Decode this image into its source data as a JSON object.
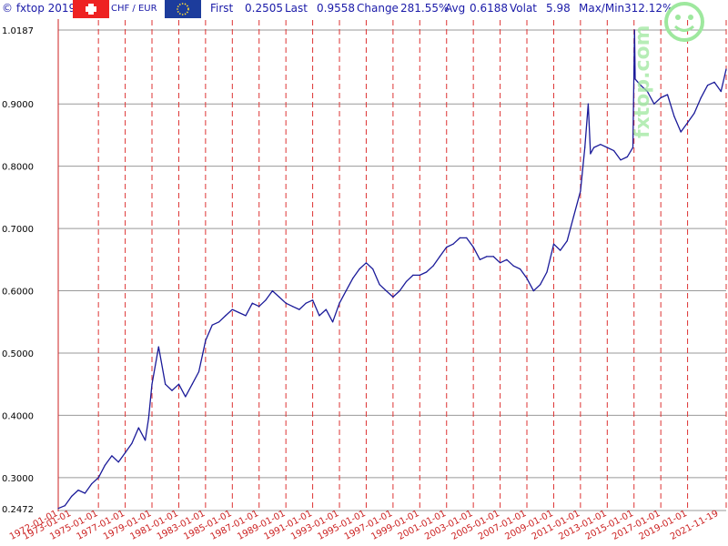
{
  "header": {
    "copyright": "© fxtop 2019",
    "pair": "CHF / EUR",
    "first_label": "First",
    "first_value": "0.2505",
    "last_label": "Last",
    "last_value": "0.9558",
    "change_label": "Change",
    "change_value": "281.55%",
    "avg_label": "Avg",
    "avg_value": "0.6188",
    "volat_label": "Volat",
    "volat_value": "5.98",
    "maxmin_label": "Max/Min",
    "maxmin_value": "312.12%"
  },
  "colors": {
    "line": "#1a1a99",
    "grid_v": "#dd3333",
    "grid_h": "#999999",
    "header_text": "#1a1aa8",
    "tick_text": "#cc2222",
    "swiss_flag": "#ee2222",
    "eu_flag": "#1c3c9c",
    "watermark": "#9ee89e"
  },
  "icons": [
    "swiss-flag-icon",
    "eu-flag-icon",
    "smiley-watermark-icon"
  ],
  "watermark": {
    "text": "fxtop.com"
  },
  "chart_data": {
    "type": "line",
    "title": "",
    "xlabel": "",
    "ylabel": "",
    "ylim": [
      0.2472,
      1.0187
    ],
    "xlim": [
      "1972-01-01",
      "2021-11-19"
    ],
    "grid": true,
    "ytick_labels": [
      "1.0187",
      "0.9000",
      "0.8000",
      "0.7000",
      "0.6000",
      "0.5000",
      "0.4000",
      "0.3000",
      "0.2472"
    ],
    "ytick_values": [
      1.0187,
      0.9,
      0.8,
      0.7,
      0.6,
      0.5,
      0.4,
      0.3,
      0.2472
    ],
    "xtick_labels": [
      "1972-01-01",
      "1973-01-01",
      "1975-01-01",
      "1977-01-01",
      "1979-01-01",
      "1981-01-01",
      "1983-01-01",
      "1985-01-01",
      "1987-01-01",
      "1989-01-01",
      "1991-01-01",
      "1993-01-01",
      "1995-01-01",
      "1997-01-01",
      "1999-01-01",
      "2001-01-01",
      "2003-01-01",
      "2005-01-01",
      "2007-01-01",
      "2009-01-01",
      "2011-01-01",
      "2013-01-01",
      "2015-01-01",
      "2017-01-01",
      "2019-01-01",
      "2021-11-19"
    ],
    "vgrid_dates": [
      "1975-01-01",
      "1977-01-01",
      "1979-01-01",
      "1981-01-01",
      "1983-01-01",
      "1985-01-01",
      "1987-01-01",
      "1989-01-01",
      "1991-01-01",
      "1993-01-01",
      "1995-01-01",
      "1997-01-01",
      "1999-01-01",
      "2001-01-01",
      "2003-01-01",
      "2005-01-01",
      "2007-01-01",
      "2009-01-01",
      "2011-01-01",
      "2013-01-01",
      "2015-01-01",
      "2017-01-01",
      "2019-01-01",
      "2021-11-19"
    ],
    "series": [
      {
        "x": [
          "1972-01-01",
          "1972-07-01",
          "1973-01-01",
          "1973-07-01",
          "1974-01-01",
          "1974-07-01",
          "1975-01-01",
          "1975-07-01",
          "1976-01-01",
          "1976-07-01",
          "1977-01-01",
          "1977-07-01",
          "1978-01-01",
          "1978-07-01",
          "1978-10-01",
          "1979-01-01",
          "1979-07-01",
          "1980-01-01",
          "1980-07-01",
          "1981-01-01",
          "1981-07-01",
          "1982-01-01",
          "1982-07-01",
          "1983-01-01",
          "1983-07-01",
          "1984-01-01",
          "1984-07-01",
          "1985-01-01",
          "1985-07-01",
          "1986-01-01",
          "1986-07-01",
          "1987-01-01",
          "1987-07-01",
          "1988-01-01",
          "1988-07-01",
          "1989-01-01",
          "1989-07-01",
          "1990-01-01",
          "1990-07-01",
          "1991-01-01",
          "1991-07-01",
          "1992-01-01",
          "1992-07-01",
          "1993-01-01",
          "1993-07-01",
          "1994-01-01",
          "1994-07-01",
          "1995-01-01",
          "1995-07-01",
          "1996-01-01",
          "1996-07-01",
          "1997-01-01",
          "1997-07-01",
          "1998-01-01",
          "1998-07-01",
          "1999-01-01",
          "1999-07-01",
          "2000-01-01",
          "2000-07-01",
          "2001-01-01",
          "2001-07-01",
          "2002-01-01",
          "2002-07-01",
          "2003-01-01",
          "2003-07-01",
          "2004-01-01",
          "2004-07-01",
          "2005-01-01",
          "2005-07-01",
          "2006-01-01",
          "2006-07-01",
          "2007-01-01",
          "2007-07-01",
          "2008-01-01",
          "2008-07-01",
          "2008-11-01",
          "2009-01-01",
          "2009-07-01",
          "2010-01-01",
          "2010-07-01",
          "2011-01-01",
          "2011-05-01",
          "2011-08-01",
          "2011-10-01",
          "2012-01-01",
          "2012-07-01",
          "2013-01-01",
          "2013-07-01",
          "2014-01-01",
          "2014-07-01",
          "2014-12-01",
          "2015-01-15",
          "2015-02-01",
          "2015-07-01",
          "2016-01-01",
          "2016-07-01",
          "2017-01-01",
          "2017-07-01",
          "2018-01-01",
          "2018-07-01",
          "2019-01-01",
          "2019-07-01",
          "2020-01-01",
          "2020-07-01",
          "2021-01-01",
          "2021-07-01",
          "2021-11-19"
        ],
        "values": [
          0.2505,
          0.255,
          0.27,
          0.28,
          0.275,
          0.29,
          0.3,
          0.32,
          0.335,
          0.325,
          0.34,
          0.355,
          0.38,
          0.36,
          0.395,
          0.45,
          0.51,
          0.45,
          0.44,
          0.45,
          0.43,
          0.45,
          0.47,
          0.52,
          0.545,
          0.55,
          0.56,
          0.57,
          0.565,
          0.56,
          0.58,
          0.575,
          0.585,
          0.6,
          0.59,
          0.58,
          0.575,
          0.57,
          0.58,
          0.585,
          0.56,
          0.57,
          0.55,
          0.58,
          0.6,
          0.62,
          0.635,
          0.645,
          0.635,
          0.61,
          0.6,
          0.59,
          0.6,
          0.615,
          0.625,
          0.625,
          0.63,
          0.64,
          0.655,
          0.67,
          0.675,
          0.685,
          0.685,
          0.67,
          0.65,
          0.655,
          0.655,
          0.645,
          0.65,
          0.64,
          0.635,
          0.62,
          0.6,
          0.61,
          0.63,
          0.66,
          0.675,
          0.665,
          0.68,
          0.72,
          0.76,
          0.83,
          0.9,
          0.82,
          0.83,
          0.835,
          0.83,
          0.825,
          0.81,
          0.815,
          0.83,
          1.0187,
          0.94,
          0.93,
          0.92,
          0.9,
          0.91,
          0.915,
          0.88,
          0.855,
          0.87,
          0.885,
          0.91,
          0.93,
          0.935,
          0.92,
          0.9558
        ]
      }
    ]
  }
}
